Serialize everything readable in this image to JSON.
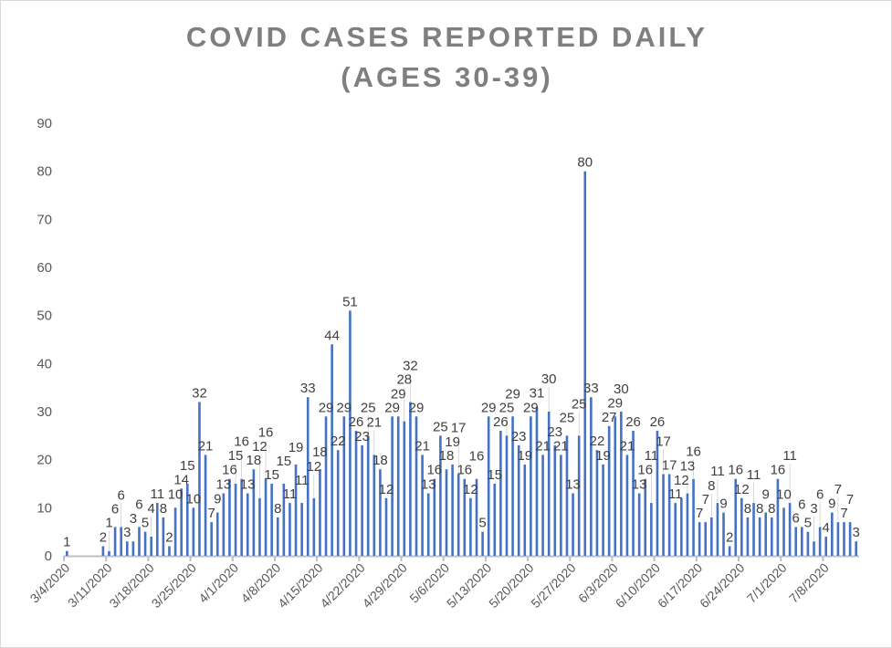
{
  "chart_data": {
    "type": "bar",
    "title_line1": "COVID CASES REPORTED DAILY",
    "title_line2": "(AGES 30-39)",
    "xlabel": "",
    "ylabel": "",
    "ylim": [
      0,
      90
    ],
    "yticks": [
      0,
      10,
      20,
      30,
      40,
      50,
      60,
      70,
      80,
      90
    ],
    "grid": false,
    "bar_color": "#4472c4",
    "start_date": "3/4/2020",
    "xtick_labels": [
      "3/4/2020",
      "3/11/2020",
      "3/18/2020",
      "3/25/2020",
      "4/1/2020",
      "4/8/2020",
      "4/15/2020",
      "4/22/2020",
      "4/29/2020",
      "5/6/2020",
      "5/13/2020",
      "5/20/2020",
      "5/27/2020",
      "6/3/2020",
      "6/10/2020",
      "6/17/2020",
      "6/24/2020",
      "7/1/2020",
      "7/8/2020"
    ],
    "values": [
      1,
      null,
      null,
      null,
      null,
      null,
      2,
      1,
      6,
      6,
      3,
      3,
      6,
      5,
      4,
      11,
      8,
      2,
      10,
      14,
      15,
      10,
      32,
      21,
      7,
      9,
      13,
      16,
      15,
      16,
      13,
      18,
      12,
      16,
      15,
      8,
      15,
      11,
      19,
      11,
      33,
      12,
      18,
      29,
      44,
      22,
      29,
      51,
      26,
      23,
      25,
      21,
      18,
      12,
      29,
      29,
      28,
      32,
      29,
      21,
      13,
      16,
      25,
      18,
      19,
      17,
      16,
      12,
      16,
      5,
      29,
      15,
      26,
      25,
      29,
      23,
      19,
      29,
      31,
      21,
      30,
      23,
      21,
      25,
      13,
      25,
      80,
      33,
      22,
      19,
      27,
      29,
      30,
      21,
      26,
      13,
      16,
      11,
      26,
      17,
      17,
      11,
      12,
      13,
      16,
      7,
      7,
      8,
      11,
      9,
      2,
      16,
      12,
      8,
      11,
      8,
      9,
      8,
      16,
      10,
      11,
      6,
      6,
      5,
      3,
      6,
      4,
      9,
      7,
      7,
      7,
      3
    ]
  }
}
